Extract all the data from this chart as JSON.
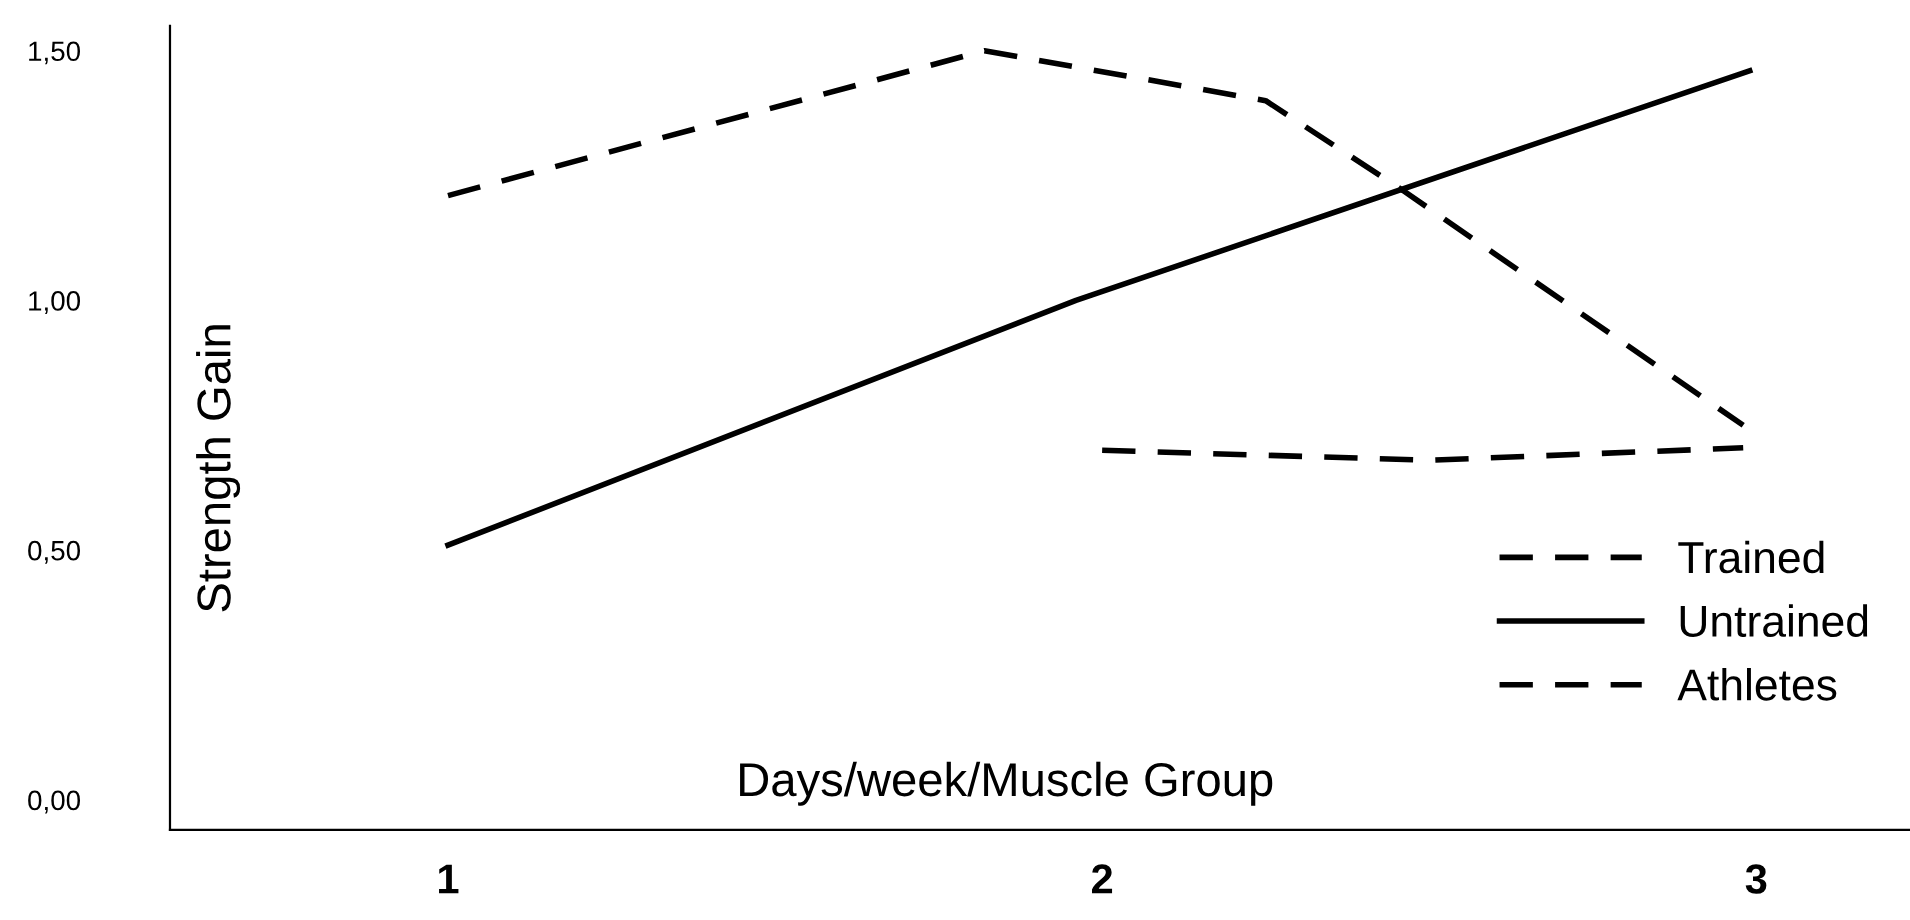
{
  "chart_data": {
    "type": "line",
    "xlabel": "Days/week/Muscle Group",
    "ylabel": "Strength Gain",
    "xlim": [
      0.575,
      3.235
    ],
    "xticks": [
      1,
      2,
      3
    ],
    "ylim": [
      -0.06,
      1.55
    ],
    "yticks": [
      {
        "value": 0,
        "label": "0,00"
      },
      {
        "value": 0.5,
        "label": "0,50"
      },
      {
        "value": 1.0,
        "label": "1,00"
      },
      {
        "value": 1.5,
        "label": "1,50"
      }
    ],
    "grid": false,
    "legend": "bottom right",
    "marker": "none",
    "series": [
      {
        "name": "Trained",
        "color": "#000000",
        "line_style": "dashed",
        "x": [
          1.0,
          1.82,
          2.25,
          2.46,
          2.98
        ],
        "values": [
          1.21,
          1.5,
          1.4,
          1.22,
          0.75
        ]
      },
      {
        "name": "Untrained",
        "color": "#000000",
        "line_style": "solid",
        "x": [
          1.0,
          1.96,
          2.99
        ],
        "values": [
          0.51,
          1.0,
          1.46
        ]
      },
      {
        "name": "Athletes",
        "color": "#000000",
        "line_style": "dashed",
        "x": [
          2.0,
          2.5,
          2.98
        ],
        "values": [
          0.7,
          0.68,
          0.705
        ]
      }
    ]
  }
}
